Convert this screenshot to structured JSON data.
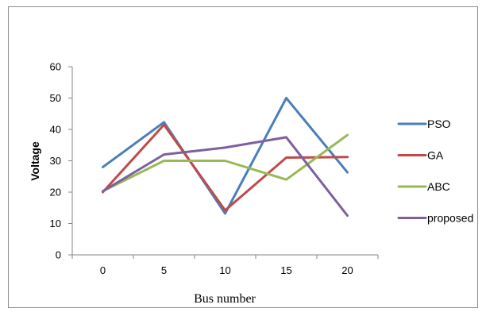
{
  "chart_data": {
    "type": "line",
    "x": [
      0,
      5,
      10,
      15,
      20
    ],
    "series": [
      {
        "name": "PSO",
        "color": "#4A7EBB",
        "values": [
          28,
          42.3,
          13.2,
          50,
          26.3
        ]
      },
      {
        "name": "GA",
        "color": "#BE4B48",
        "values": [
          20,
          41.5,
          14.2,
          31,
          31.2
        ]
      },
      {
        "name": "ABC",
        "color": "#98B954",
        "values": [
          20.3,
          30,
          30,
          24,
          38.2
        ]
      },
      {
        "name": "proposed",
        "color": "#7D60A0",
        "values": [
          20.3,
          32,
          34.2,
          37.5,
          12.5
        ]
      }
    ],
    "title": "",
    "xlabel": "Bus number",
    "ylabel": "Voltage",
    "ylim": [
      0,
      60
    ],
    "yticks": [
      "0",
      "10",
      "20",
      "30",
      "40",
      "50",
      "60"
    ],
    "xticks": [
      "0",
      "5",
      "10",
      "15",
      "20"
    ],
    "grid": false,
    "legend": "right"
  }
}
